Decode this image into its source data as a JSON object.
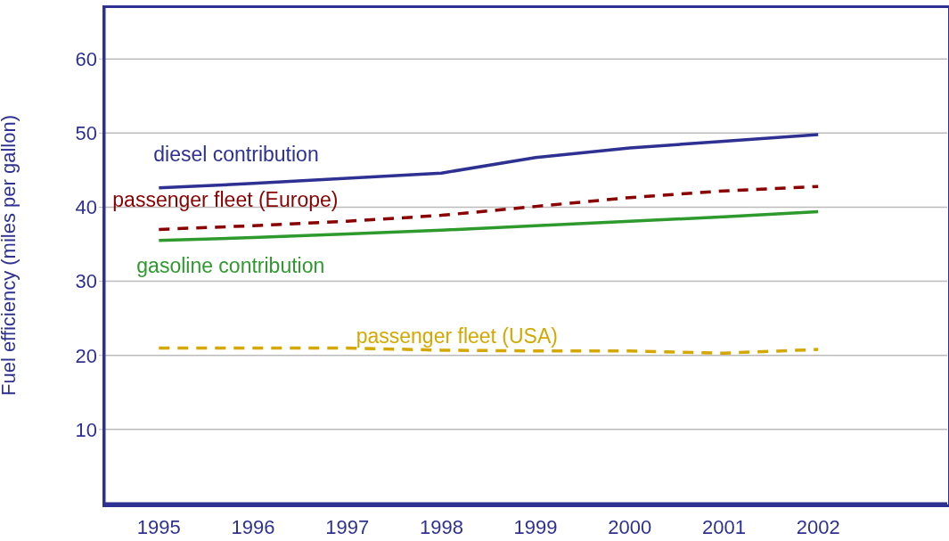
{
  "chart_data": {
    "type": "line",
    "ylabel": "Fuel efficiency (miles per gallon)",
    "x": [
      1995,
      1996,
      1997,
      1998,
      1999,
      2000,
      2001,
      2002
    ],
    "xlim": [
      1994.42,
      2003.37
    ],
    "xticks": [
      1995,
      1996,
      1997,
      1998,
      1999,
      2000,
      2001,
      2002
    ],
    "ylim": [
      0,
      67
    ],
    "yticks": [
      10,
      20,
      30,
      40,
      50,
      60
    ],
    "grid": "y",
    "marker": "none",
    "series": [
      {
        "name": "diesel contribution",
        "color": "#2e3192",
        "line_style": "solid",
        "values": [
          42.6,
          43.2,
          43.9,
          44.6,
          46.7,
          48.0,
          48.9,
          49.8
        ]
      },
      {
        "name": "passenger fleet (Europe)",
        "color": "#8b0000",
        "line_style": "dashed",
        "values": [
          37.0,
          37.5,
          38.1,
          38.9,
          40.1,
          41.3,
          42.2,
          42.8
        ]
      },
      {
        "name": "gasoline contribution",
        "color": "#2e9a2e",
        "line_style": "solid",
        "values": [
          35.5,
          35.9,
          36.4,
          36.9,
          37.5,
          38.1,
          38.7,
          39.4
        ]
      },
      {
        "name": "passenger fleet (USA)",
        "color": "#d4a800",
        "line_style": "dashed",
        "values": [
          21.0,
          21.0,
          21.0,
          20.7,
          20.6,
          20.6,
          20.3,
          20.8
        ]
      }
    ]
  }
}
